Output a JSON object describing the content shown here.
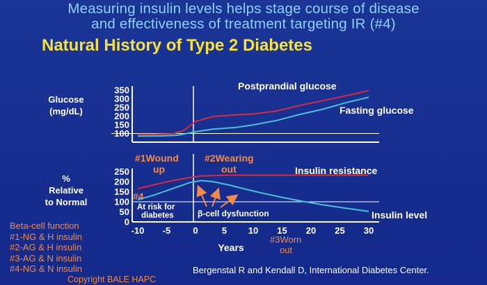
{
  "header": {
    "line1": "Measuring insulin levels helps stage course of disease",
    "line2": "and effectiveness of treatment targeting IR (#4)",
    "title": "Natural History of Type 2 Diabetes"
  },
  "footer": {
    "legend_title": "Beta-cell function",
    "legend_items": [
      "#1-NG & H insulin",
      "#2-AG & H insulin",
      "#3-AG & N insulin",
      "#4-NG & N insulin"
    ],
    "copyright": "Copyright BALE HAPC",
    "source": "Bergenstal R and Kendall D, International Diabetes Center."
  },
  "colors": {
    "background": "#152c8c",
    "header": "#8fd0ff",
    "title": "#f6e23a",
    "red": "#d92b3a",
    "cyan": "#46c3d6",
    "orange": "#f28a4a",
    "axis": "#ffffff"
  },
  "chart_data": [
    {
      "type": "line",
      "ylabel_lines": [
        "Glucose",
        "(mg/dL)"
      ],
      "yticks": [
        100,
        150,
        200,
        250,
        300,
        350
      ],
      "ylim": [
        50,
        375
      ],
      "xlim": [
        -12,
        33
      ],
      "reference_line": 100,
      "series": [
        {
          "name": "Postprandial glucose",
          "color": "#d92b3a",
          "x": [
            -10,
            -7,
            -4,
            -2,
            0,
            3,
            7,
            10,
            14,
            18,
            22,
            26,
            30
          ],
          "y": [
            95,
            95,
            98,
            118,
            170,
            198,
            208,
            213,
            230,
            262,
            290,
            318,
            348
          ]
        },
        {
          "name": "Fasting glucose",
          "color": "#46c3d6",
          "x": [
            -10,
            -6,
            -3,
            0,
            3,
            7,
            10,
            14,
            18,
            22,
            26,
            30
          ],
          "y": [
            85,
            86,
            90,
            110,
            125,
            135,
            150,
            175,
            210,
            240,
            278,
            310
          ]
        }
      ]
    },
    {
      "type": "line",
      "ylabel_lines": [
        "%",
        "Relative",
        "to Normal"
      ],
      "yticks": [
        0,
        50,
        100,
        150,
        200,
        250
      ],
      "ylim": [
        0,
        265
      ],
      "xlim": [
        -12,
        33
      ],
      "xticks": [
        -10,
        -5,
        0,
        5,
        10,
        15,
        20,
        25,
        30
      ],
      "xlabel": "Years",
      "reference_line": 100,
      "series": [
        {
          "name": "Insulin resistance",
          "color": "#d92b3a",
          "x": [
            -10,
            -7,
            -4,
            -1,
            1,
            3,
            6,
            10,
            15,
            20,
            25,
            30
          ],
          "y": [
            165,
            185,
            205,
            220,
            228,
            230,
            232,
            232,
            232,
            232,
            232,
            232
          ]
        },
        {
          "name": "Insulin level",
          "color": "#46c3d6",
          "x": [
            -10,
            -7,
            -4,
            -1,
            1,
            3,
            6,
            9,
            12,
            15,
            18,
            22,
            26,
            30
          ],
          "y": [
            110,
            135,
            165,
            195,
            205,
            200,
            182,
            160,
            140,
            122,
            105,
            85,
            68,
            52
          ]
        }
      ],
      "annotations": {
        "stage1_line1": "#1Wound",
        "stage1_line2": "up",
        "stage2_line1": "#2Wearing",
        "stage2_line2": "out",
        "stage3_line1": "#3Worn",
        "stage3_line2": "out",
        "stage4": "#4",
        "at_risk_line1": "At risk for",
        "at_risk_line2": "diabetes",
        "dysfunction": "β-cell dysfunction"
      }
    }
  ]
}
